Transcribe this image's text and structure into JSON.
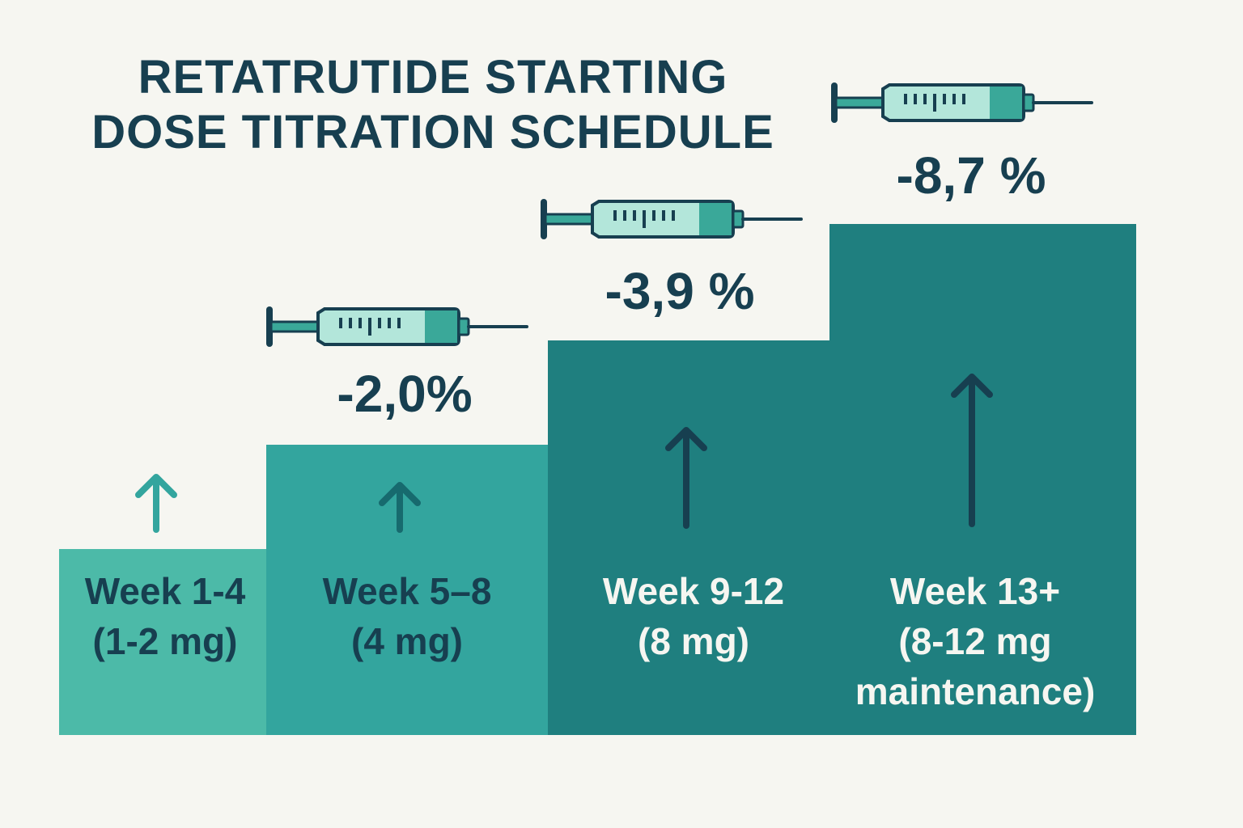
{
  "title": {
    "line1": "RETATRUTIDE STARTING",
    "line2": "DOSE TITRATION SCHEDULE"
  },
  "colors": {
    "background": "#f6f6f1",
    "text_dark": "#173f50",
    "text_light": "#f6f6f1",
    "step1": "#4cbaa8",
    "step2": "#33a59e",
    "step3": "#1f7f7f",
    "step4": "#1f7f7f",
    "syringe_fill": "#b3e6da",
    "syringe_accent": "#3aa899"
  },
  "chart_data": {
    "type": "bar",
    "title": "RETATRUTIDE STARTING DOSE TITRATION SCHEDULE",
    "xlabel": "",
    "ylabel": "",
    "categories": [
      "Week 1-4",
      "Week 5–8",
      "Week 9-12",
      "Week 13+"
    ],
    "doses": [
      "(1-2 mg)",
      "(4 mg)",
      "(8 mg)",
      "(8-12 mg maintenance)"
    ],
    "step_levels": [
      1,
      2,
      3,
      4
    ],
    "values": [
      null,
      -2.0,
      -3.9,
      -8.7
    ],
    "value_labels": [
      "",
      "-2,0%",
      "-3,9 %",
      "-8,7 %"
    ],
    "grid": false,
    "legend": "none"
  },
  "steps": [
    {
      "week": "Week 1-4",
      "dose": "(1-2 mg)",
      "dose_line2": ""
    },
    {
      "week": "Week 5–8",
      "dose": "(4 mg)",
      "dose_line2": ""
    },
    {
      "week": "Week 9-12",
      "dose": "(8 mg)",
      "dose_line2": ""
    },
    {
      "week": "Week 13+",
      "dose": "(8-12 mg",
      "dose_line2": "maintenance)"
    }
  ],
  "icons": {
    "syringe": "syringe-icon",
    "arrow": "arrow-up-icon"
  }
}
